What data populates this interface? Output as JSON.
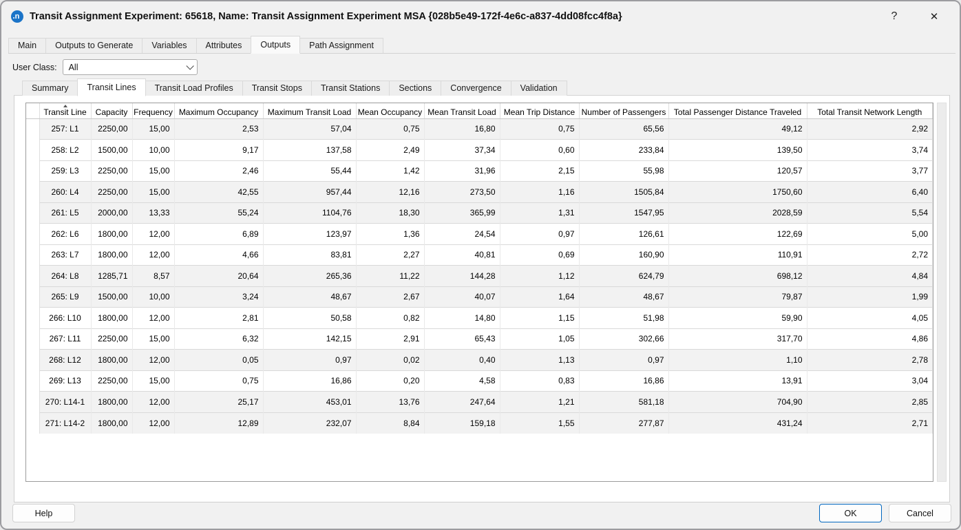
{
  "window": {
    "title": "Transit Assignment Experiment: 65618, Name: Transit Assignment Experiment MSA  {028b5e49-172f-4e6c-a837-4dd08fcc4f8a}",
    "icon_letter": "n",
    "help_glyph": "?",
    "close_glyph": "✕"
  },
  "tabs": {
    "items": [
      "Main",
      "Outputs to Generate",
      "Variables",
      "Attributes",
      "Outputs",
      "Path Assignment"
    ],
    "active": "Outputs"
  },
  "user_class": {
    "label": "User Class:",
    "value": "All"
  },
  "subtabs": {
    "items": [
      "Summary",
      "Transit Lines",
      "Transit Load Profiles",
      "Transit Stops",
      "Transit Stations",
      "Sections",
      "Convergence",
      "Validation"
    ],
    "active": "Transit Lines"
  },
  "table": {
    "columns": [
      {
        "label": "Transit Line",
        "sorted": "asc"
      },
      {
        "label": "Capacity"
      },
      {
        "label": "Frequency"
      },
      {
        "label": "Maximum Occupancy"
      },
      {
        "label": "Maximum Transit Load"
      },
      {
        "label": "Mean Occupancy"
      },
      {
        "label": "Mean Transit Load"
      },
      {
        "label": "Mean Trip Distance"
      },
      {
        "label": "Number of Passengers"
      },
      {
        "label": "Total Passenger Distance Traveled"
      },
      {
        "label": "Total Transit Network Length"
      }
    ],
    "rows": [
      {
        "line": "257: L1",
        "shaded": true,
        "values": [
          "2250,00",
          "15,00",
          "2,53",
          "57,04",
          "0,75",
          "16,80",
          "0,75",
          "65,56",
          "49,12",
          "2,92"
        ]
      },
      {
        "line": "258: L2",
        "shaded": false,
        "values": [
          "1500,00",
          "10,00",
          "9,17",
          "137,58",
          "2,49",
          "37,34",
          "0,60",
          "233,84",
          "139,50",
          "3,74"
        ]
      },
      {
        "line": "259: L3",
        "shaded": false,
        "values": [
          "2250,00",
          "15,00",
          "2,46",
          "55,44",
          "1,42",
          "31,96",
          "2,15",
          "55,98",
          "120,57",
          "3,77"
        ]
      },
      {
        "line": "260: L4",
        "shaded": true,
        "values": [
          "2250,00",
          "15,00",
          "42,55",
          "957,44",
          "12,16",
          "273,50",
          "1,16",
          "1505,84",
          "1750,60",
          "6,40"
        ]
      },
      {
        "line": "261: L5",
        "shaded": true,
        "values": [
          "2000,00",
          "13,33",
          "55,24",
          "1104,76",
          "18,30",
          "365,99",
          "1,31",
          "1547,95",
          "2028,59",
          "5,54"
        ]
      },
      {
        "line": "262: L6",
        "shaded": false,
        "values": [
          "1800,00",
          "12,00",
          "6,89",
          "123,97",
          "1,36",
          "24,54",
          "0,97",
          "126,61",
          "122,69",
          "5,00"
        ]
      },
      {
        "line": "263: L7",
        "shaded": false,
        "values": [
          "1800,00",
          "12,00",
          "4,66",
          "83,81",
          "2,27",
          "40,81",
          "0,69",
          "160,90",
          "110,91",
          "2,72"
        ]
      },
      {
        "line": "264: L8",
        "shaded": true,
        "values": [
          "1285,71",
          "8,57",
          "20,64",
          "265,36",
          "11,22",
          "144,28",
          "1,12",
          "624,79",
          "698,12",
          "4,84"
        ]
      },
      {
        "line": "265: L9",
        "shaded": true,
        "values": [
          "1500,00",
          "10,00",
          "3,24",
          "48,67",
          "2,67",
          "40,07",
          "1,64",
          "48,67",
          "79,87",
          "1,99"
        ]
      },
      {
        "line": "266: L10",
        "shaded": false,
        "values": [
          "1800,00",
          "12,00",
          "2,81",
          "50,58",
          "0,82",
          "14,80",
          "1,15",
          "51,98",
          "59,90",
          "4,05"
        ]
      },
      {
        "line": "267: L11",
        "shaded": false,
        "values": [
          "2250,00",
          "15,00",
          "6,32",
          "142,15",
          "2,91",
          "65,43",
          "1,05",
          "302,66",
          "317,70",
          "4,86"
        ]
      },
      {
        "line": "268: L12",
        "shaded": true,
        "values": [
          "1800,00",
          "12,00",
          "0,05",
          "0,97",
          "0,02",
          "0,40",
          "1,13",
          "0,97",
          "1,10",
          "2,78"
        ]
      },
      {
        "line": "269: L13",
        "shaded": false,
        "values": [
          "2250,00",
          "15,00",
          "0,75",
          "16,86",
          "0,20",
          "4,58",
          "0,83",
          "16,86",
          "13,91",
          "3,04"
        ]
      },
      {
        "line": "270: L14-1",
        "shaded": true,
        "values": [
          "1800,00",
          "12,00",
          "25,17",
          "453,01",
          "13,76",
          "247,64",
          "1,21",
          "581,18",
          "704,90",
          "2,85"
        ]
      },
      {
        "line": "271: L14-2",
        "shaded": true,
        "values": [
          "1800,00",
          "12,00",
          "12,89",
          "232,07",
          "8,84",
          "159,18",
          "1,55",
          "277,87",
          "431,24",
          "2,71"
        ]
      }
    ]
  },
  "footer": {
    "help_label": "Help",
    "ok_label": "OK",
    "cancel_label": "Cancel"
  },
  "colors": {
    "accent": "#0067c0",
    "row_shade": "#f2f2f2"
  }
}
